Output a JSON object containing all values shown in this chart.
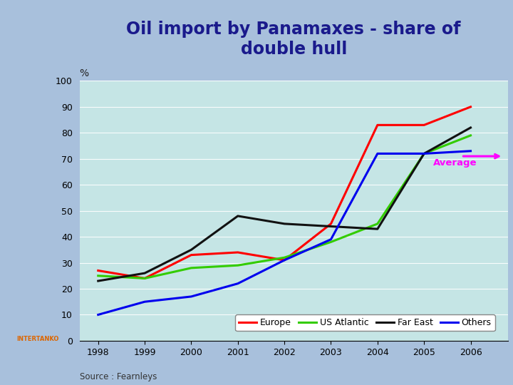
{
  "title": "Oil import by Panamaxes - share of\ndouble hull",
  "ylabel": "%",
  "years": [
    1998,
    1999,
    2000,
    2001,
    2002,
    2003,
    2004,
    2005,
    2006
  ],
  "europe": [
    27,
    24,
    33,
    34,
    31,
    45,
    83,
    83,
    90
  ],
  "us_atlantic": [
    25,
    24,
    28,
    29,
    32,
    38,
    45,
    72,
    79
  ],
  "far_east": [
    23,
    26,
    35,
    48,
    45,
    44,
    43,
    72,
    82
  ],
  "others": [
    10,
    15,
    17,
    22,
    31,
    39,
    72,
    72,
    73
  ],
  "europe_color": "#ff0000",
  "us_atlantic_color": "#33cc00",
  "far_east_color": "#111111",
  "others_color": "#0000ee",
  "average_color": "#ff00ff",
  "bg_title": "#b8cfe8",
  "bg_plot": "#c5e5e5",
  "bg_outer": "#a8c0dc",
  "ylim": [
    0,
    100
  ],
  "xlim_min": 1997.6,
  "xlim_max": 2006.8,
  "source": "Source : Fearnleys",
  "average_label": "Average",
  "legend_labels": [
    "Europe",
    "US Atlantic",
    "Far East",
    "Others"
  ],
  "title_fontsize": 17,
  "axis_fontsize": 9,
  "legend_fontsize": 9
}
